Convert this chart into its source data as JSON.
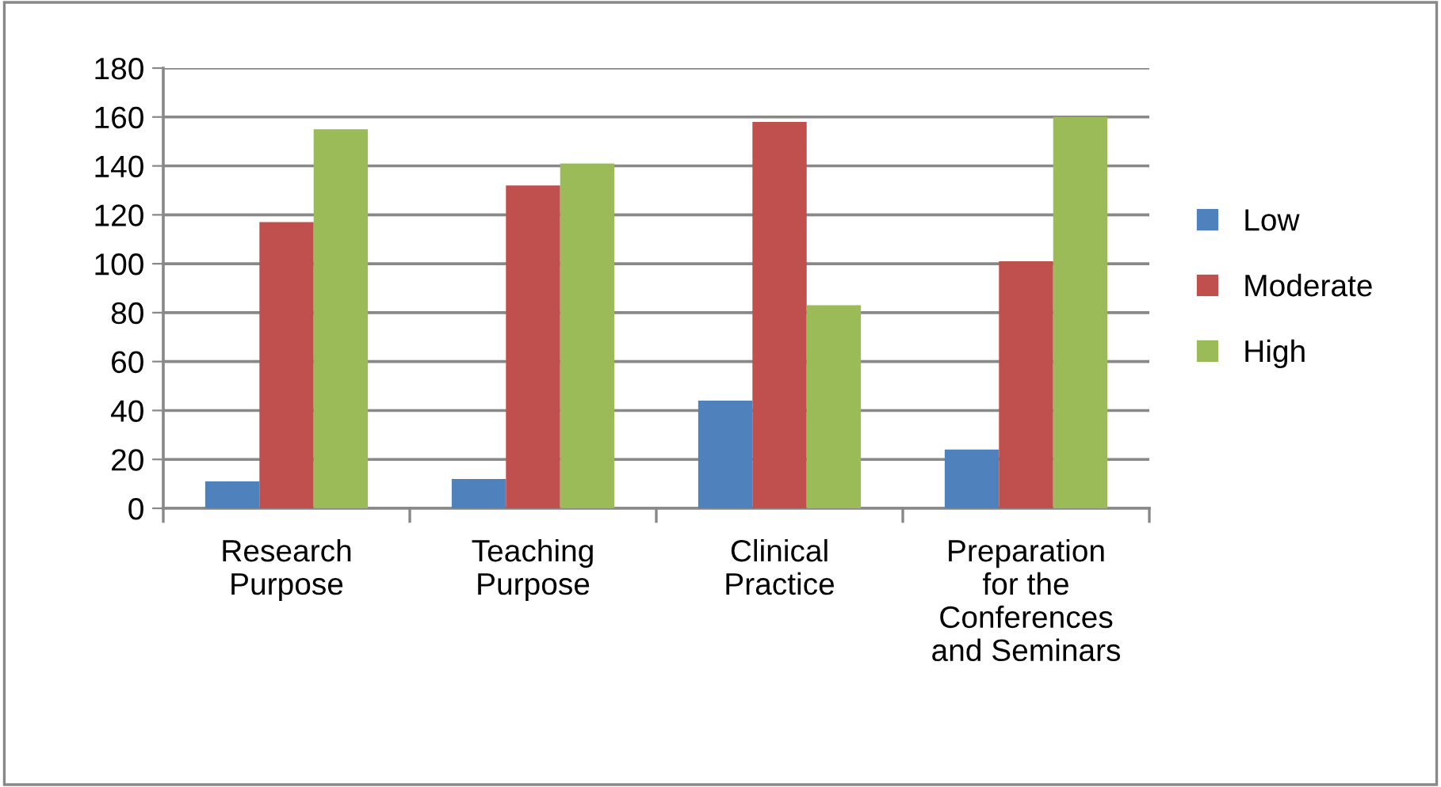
{
  "chart_data": {
    "type": "bar",
    "categories": [
      "Research Purpose",
      "Teaching Purpose",
      "Clinical Practice",
      "Preparation for the Conferences and Seminars"
    ],
    "series": [
      {
        "name": "Low",
        "color": "#4f81bd",
        "values": [
          11,
          12,
          44,
          24
        ]
      },
      {
        "name": "Moderate",
        "color": "#c0504d",
        "values": [
          117,
          132,
          158,
          101
        ]
      },
      {
        "name": "High",
        "color": "#9bbb59",
        "values": [
          155,
          141,
          83,
          160
        ]
      }
    ],
    "ylim": [
      0,
      180
    ],
    "yticks": [
      0,
      20,
      40,
      60,
      80,
      100,
      120,
      140,
      160,
      180
    ],
    "grid": "y",
    "legend": "right"
  }
}
